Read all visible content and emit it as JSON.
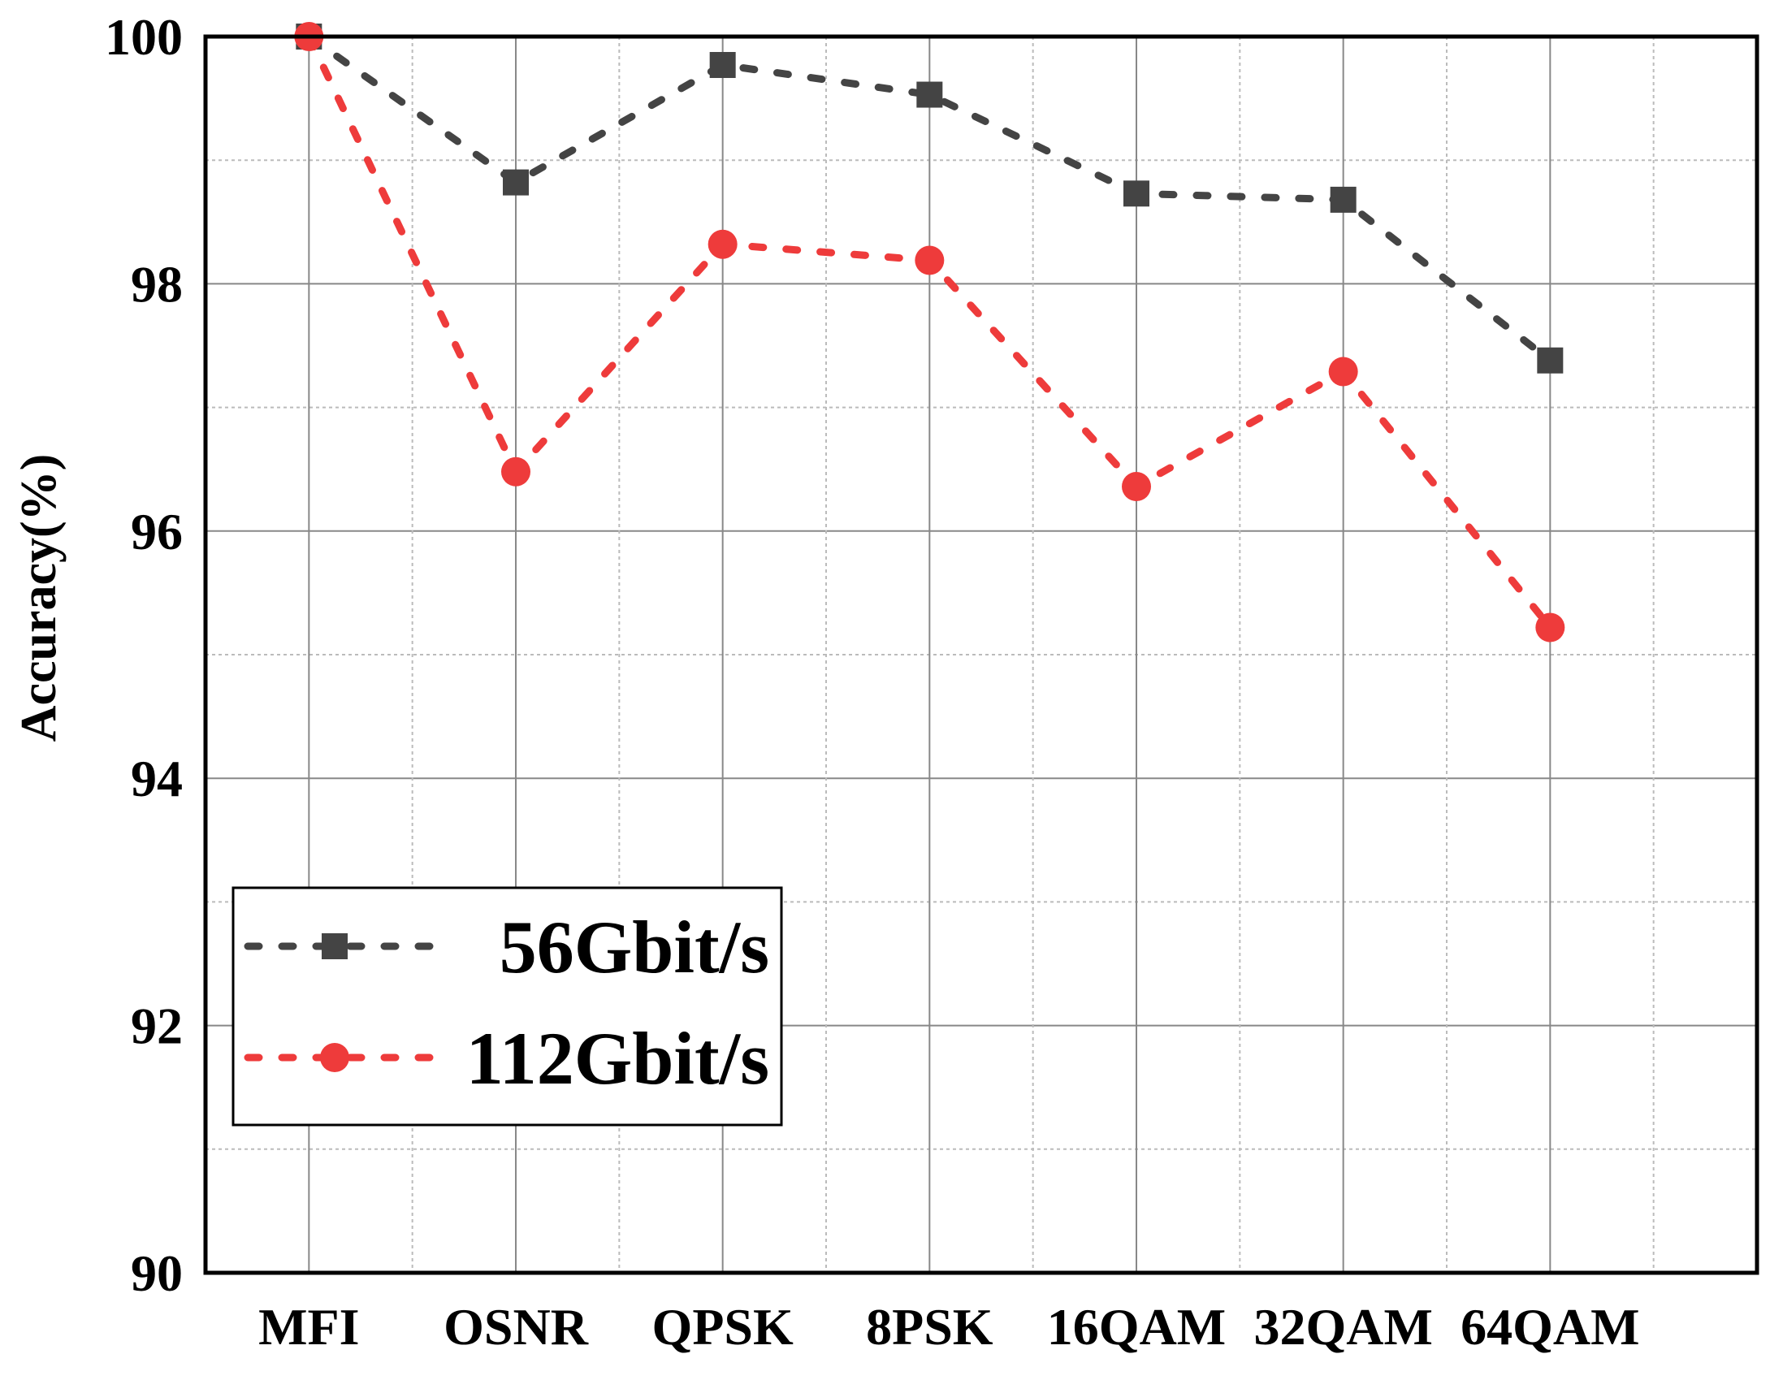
{
  "chart_data": {
    "type": "line",
    "title": "",
    "xlabel": "",
    "ylabel": "Accuracy(%)",
    "categories": [
      "MFI",
      "OSNR",
      "QPSK",
      "8PSK",
      "16QAM",
      "32QAM",
      "64QAM"
    ],
    "ylim": [
      90,
      100
    ],
    "yticks": [
      "90",
      "92",
      "94",
      "96",
      "98",
      "100"
    ],
    "grid": true,
    "legend_position": "bottom-left",
    "series": [
      {
        "name": "56Gbit/s",
        "color": "#444444",
        "marker": "square",
        "line_style": "dashed",
        "values": [
          100.0,
          98.82,
          99.77,
          99.53,
          98.73,
          98.68,
          97.38
        ]
      },
      {
        "name": "112Gbit/s",
        "color": "#ee3b3b",
        "marker": "circle",
        "line_style": "dashed",
        "values": [
          100.0,
          96.48,
          98.32,
          98.19,
          96.36,
          97.29,
          95.22
        ]
      }
    ]
  }
}
